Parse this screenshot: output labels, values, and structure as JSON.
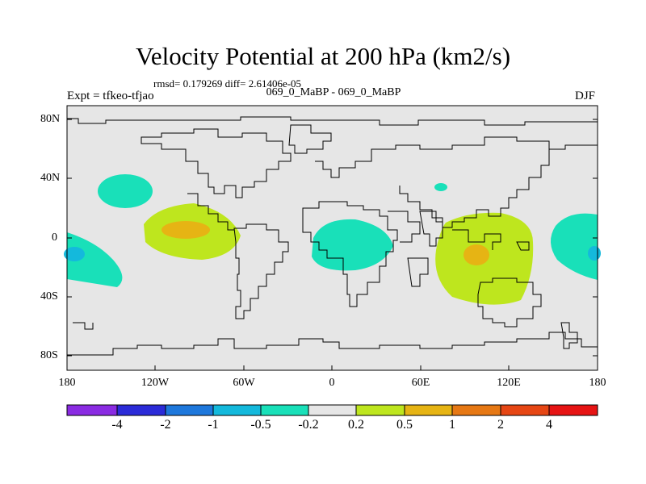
{
  "header": {
    "title": "Velocity Potential at 200 hPa (km2/s)",
    "stats": "rmsd= 0.179269 diff= 2.61406e-05",
    "expt": "Expt = tfkeo-tfjao",
    "case": "069_0_MaBP - 069_0_MaBP",
    "season": "DJF"
  },
  "axes": {
    "lat_labels": [
      "80N",
      "40N",
      "0",
      "40S",
      "80S"
    ],
    "lon_labels": [
      "180",
      "120W",
      "60W",
      "0",
      "60E",
      "120E",
      "180"
    ]
  },
  "colorbar": {
    "labels": [
      "-4",
      "-2",
      "-1",
      "-0.5",
      "-0.2",
      "0.2",
      "0.5",
      "1",
      "2",
      "4"
    ],
    "colors": [
      "#8a2be2",
      "#2b2bd8",
      "#1e78dc",
      "#14b9dc",
      "#19e0b9",
      "#e6e6e6",
      "#bee61e",
      "#e6b414",
      "#e67814",
      "#e64614",
      "#e61414"
    ]
  },
  "colors": {
    "background_field": "#e6e6e6",
    "positive_weak": "#bee61e",
    "positive_mid": "#e6b414",
    "negative_weak": "#19e0b9",
    "negative_mid": "#14b9dc"
  }
}
